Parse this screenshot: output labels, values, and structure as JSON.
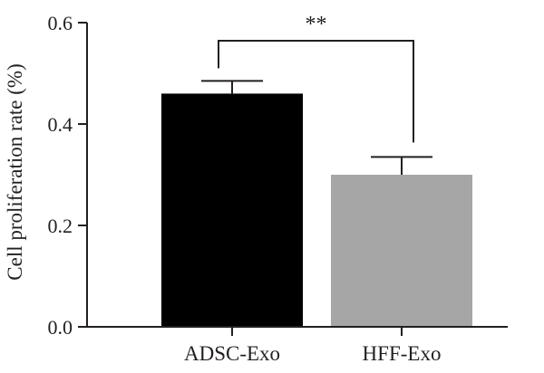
{
  "chart_data": {
    "type": "bar",
    "title": "",
    "xlabel": "",
    "ylabel": "Cell proliferation rate (%)",
    "ylim": [
      0,
      0.6
    ],
    "yticks": [
      "0.0",
      "0.2",
      "0.4",
      "0.6"
    ],
    "categories": [
      "ADSC-Exo",
      "HFF-Exo"
    ],
    "values": [
      0.46,
      0.3
    ],
    "errors": [
      0.025,
      0.035
    ],
    "colors": [
      "#000000",
      "#a6a6a6"
    ],
    "significance": {
      "label": "**",
      "between": [
        "ADSC-Exo",
        "HFF-Exo"
      ]
    },
    "grid": false,
    "legend": "none"
  }
}
